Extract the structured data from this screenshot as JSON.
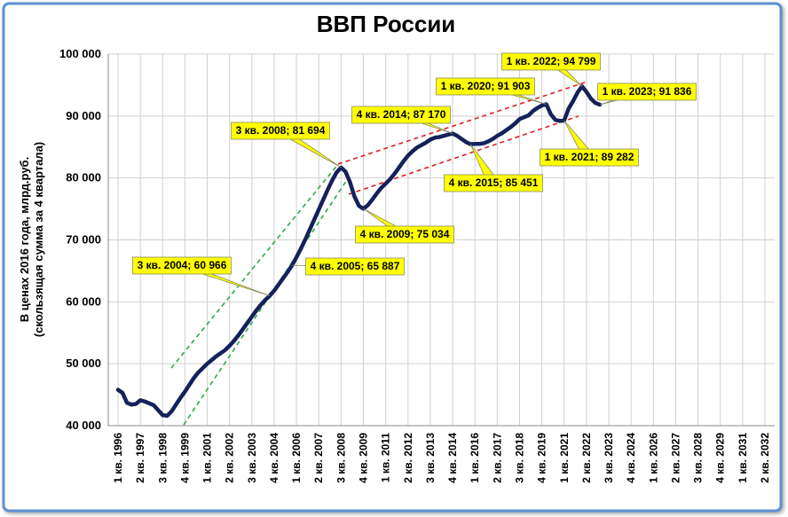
{
  "chart_data": {
    "type": "line",
    "title": "ВВП России",
    "ylabel": [
      "В ценах 2016 года, млрд.руб.",
      "(скользящая сумма за 4 квартала)"
    ],
    "categories": [
      "1 кв. 1996",
      null,
      null,
      null,
      null,
      "2 кв. 1997",
      null,
      null,
      null,
      null,
      "3 кв. 1998",
      null,
      null,
      null,
      null,
      "4 кв. 1999",
      null,
      null,
      null,
      null,
      "1 кв. 2001",
      null,
      null,
      null,
      null,
      "2 кв. 2002",
      null,
      null,
      null,
      null,
      "3 кв. 2003",
      null,
      null,
      null,
      null,
      "4 кв. 2004",
      null,
      null,
      null,
      null,
      "1 кв. 2006",
      null,
      null,
      null,
      null,
      "2 кв. 2007",
      null,
      null,
      null,
      null,
      "3 кв. 2008",
      null,
      null,
      null,
      null,
      "4 кв. 2009",
      null,
      null,
      null,
      null,
      "1 кв. 2011",
      null,
      null,
      null,
      null,
      "2 кв. 2012",
      null,
      null,
      null,
      null,
      "3 кв. 2013",
      null,
      null,
      null,
      null,
      "4 кв. 2014",
      null,
      null,
      null,
      null,
      "1 кв. 2016",
      null,
      null,
      null,
      null,
      "2 кв. 2017",
      null,
      null,
      null,
      null,
      "3 кв. 2018",
      null,
      null,
      null,
      null,
      "4 кв. 2019",
      null,
      null,
      null,
      null,
      "1 кв. 2021",
      null,
      null,
      null,
      null,
      "2 кв. 2022",
      null,
      null,
      null,
      null,
      "3 кв. 2023",
      null,
      null,
      null,
      null,
      "4 кв. 2024",
      null,
      null,
      null,
      null,
      "1 кв. 2026",
      null,
      null,
      null,
      null,
      "2 кв. 2027",
      null,
      null,
      null,
      null,
      "3 кв. 2028",
      null,
      null,
      null,
      null,
      "4 кв. 2029",
      null,
      null,
      null,
      null,
      "1 кв. 2031",
      null,
      null,
      null,
      null,
      "2 кв. 2032"
    ],
    "values": [
      45800,
      45300,
      43700,
      43400,
      43500,
      44100,
      43900,
      43600,
      43300,
      42500,
      41700,
      41600,
      42300,
      43400,
      44500,
      45500,
      46600,
      47700,
      48600,
      49300,
      50000,
      50600,
      51200,
      51700,
      52200,
      52900,
      53700,
      54600,
      55600,
      56600,
      57600,
      58600,
      59500,
      60300,
      60966,
      61800,
      62800,
      63800,
      64800,
      65887,
      67200,
      68600,
      70100,
      71700,
      73300,
      74900,
      76500,
      78100,
      79600,
      80900,
      81694,
      81000,
      79300,
      77000,
      75500,
      75034,
      75600,
      76500,
      77500,
      78400,
      79100,
      79800,
      80700,
      81700,
      82700,
      83600,
      84300,
      84900,
      85300,
      85700,
      86200,
      86500,
      86600,
      86800,
      87000,
      87170,
      86800,
      86300,
      85800,
      85451,
      85500,
      85500,
      85600,
      85900,
      86300,
      86800,
      87200,
      87700,
      88200,
      88800,
      89500,
      89800,
      90100,
      90800,
      91300,
      91700,
      91903,
      90300,
      89400,
      89200,
      89282,
      91200,
      92400,
      93800,
      94799,
      93900,
      92800,
      92100,
      91836,
      null,
      null,
      null,
      null,
      null,
      null,
      null,
      null,
      null,
      null,
      null,
      null,
      null,
      null,
      null,
      null,
      null,
      null,
      null,
      null,
      null,
      null,
      null,
      null,
      null,
      null,
      null,
      null,
      null,
      null,
      null,
      null,
      null,
      null,
      null,
      null,
      null
    ],
    "value_labels": [
      null,
      null,
      null,
      null,
      null,
      null,
      null,
      null,
      null,
      null,
      null,
      null,
      null,
      null,
      null,
      null,
      null,
      null,
      null,
      null,
      null,
      null,
      null,
      null,
      null,
      null,
      null,
      null,
      null,
      null,
      null,
      null,
      null,
      null,
      "3 кв. 2004; 60 966",
      null,
      null,
      null,
      null,
      "4 кв. 2005; 65 887",
      null,
      null,
      null,
      null,
      null,
      null,
      null,
      null,
      null,
      null,
      "3 кв. 2008; 81 694",
      null,
      null,
      null,
      null,
      "4 кв. 2009; 75 034",
      null,
      null,
      null,
      null,
      null,
      null,
      null,
      null,
      null,
      null,
      null,
      null,
      null,
      null,
      null,
      null,
      null,
      null,
      null,
      "4 кв. 2014; 87 170",
      null,
      null,
      null,
      "4 кв. 2015; 85 451",
      null,
      null,
      null,
      null,
      null,
      null,
      null,
      null,
      null,
      null,
      null,
      null,
      null,
      null,
      null,
      null,
      "1 кв. 2020; 91 903",
      null,
      null,
      null,
      "1 кв. 2021; 89 282",
      null,
      null,
      null,
      "1 кв. 2022; 94 799",
      null,
      null,
      null,
      "1 кв. 2023; 91 836",
      null,
      null,
      null,
      null,
      null,
      null,
      null,
      null,
      null,
      null,
      null,
      null,
      null,
      null,
      null,
      null,
      null,
      null,
      null,
      null,
      null,
      null,
      null,
      null,
      null,
      null,
      null,
      null,
      null,
      null,
      null,
      null,
      null,
      null,
      null,
      null,
      null
    ],
    "color": "#14215a",
    "ylim": [
      40000,
      100000
    ],
    "yticks": [
      {
        "value": 40000,
        "label": "40 000"
      },
      {
        "value": 50000,
        "label": "50 000"
      },
      {
        "value": 60000,
        "label": "60 000"
      },
      {
        "value": 70000,
        "label": "70 000"
      },
      {
        "value": 80000,
        "label": "80 000"
      },
      {
        "value": 90000,
        "label": "90 000"
      },
      {
        "value": 100000,
        "label": "100 000"
      }
    ],
    "grid": true
  }
}
